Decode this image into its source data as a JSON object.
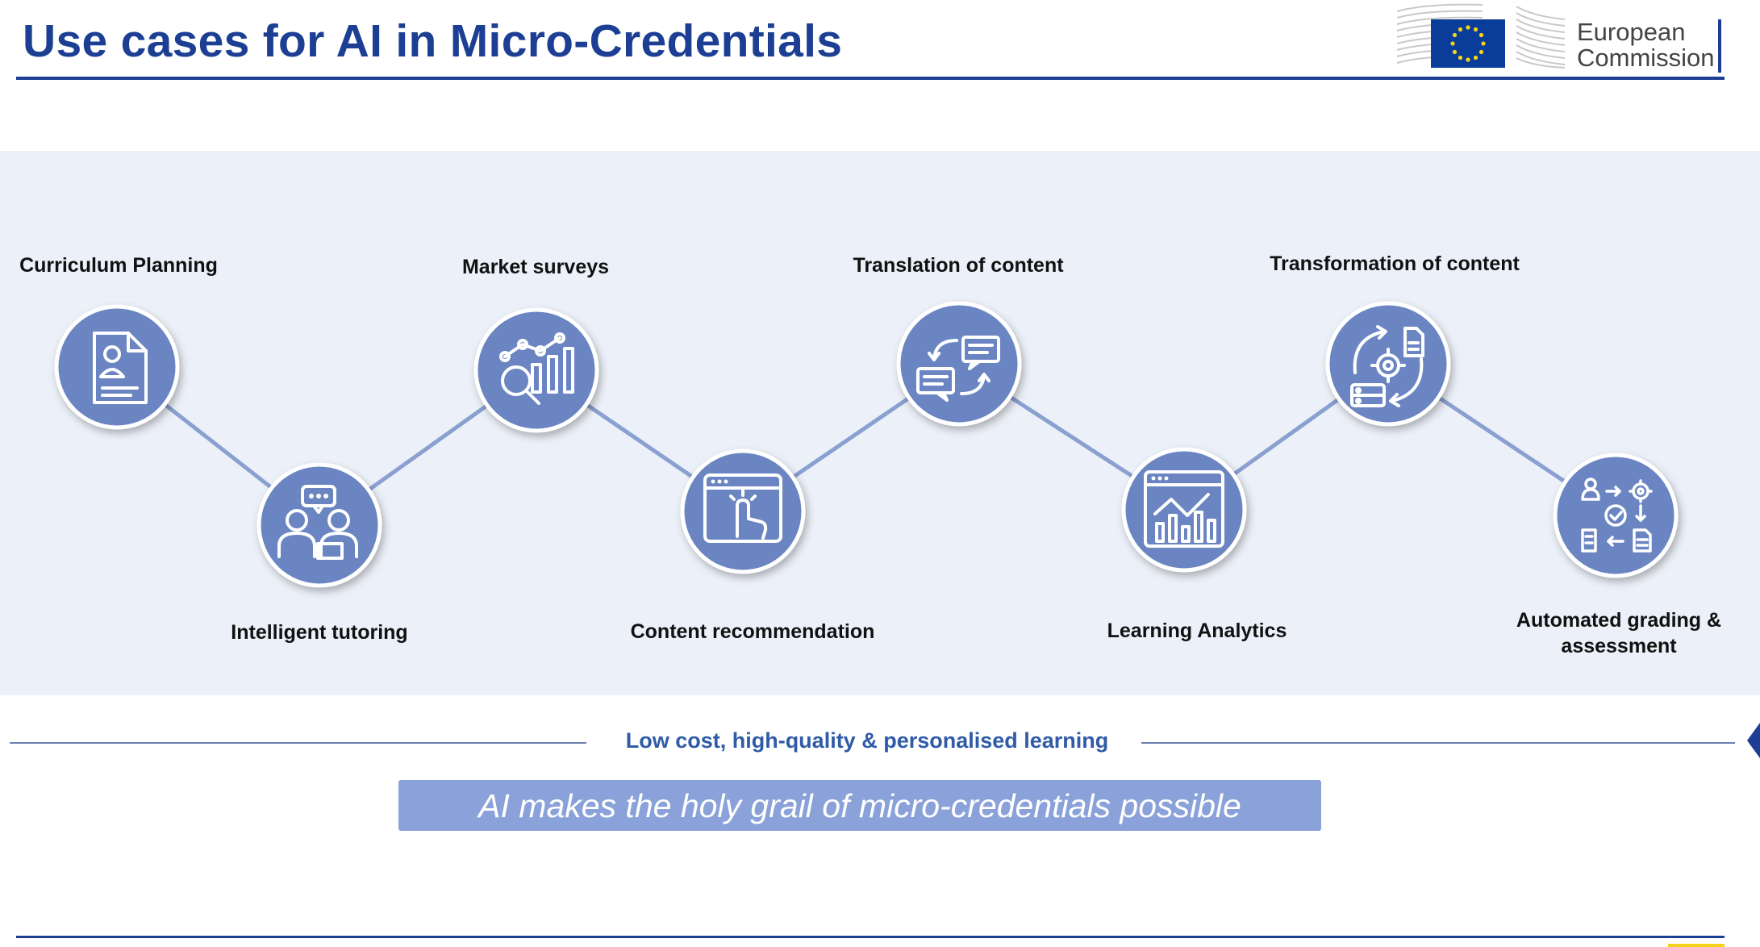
{
  "page": {
    "title": "Use cases for AI in Micro-Credentials"
  },
  "logo": {
    "line1": "European",
    "line2": "Commission"
  },
  "diagram": {
    "nodes": [
      {
        "label": "Curriculum Planning",
        "icon": "document-person-icon"
      },
      {
        "label": "Intelligent tutoring",
        "icon": "tutoring-people-icon"
      },
      {
        "label": "Market surveys",
        "icon": "chart-magnifier-icon"
      },
      {
        "label": "Content recommendation",
        "icon": "browser-click-icon"
      },
      {
        "label": "Translation of content",
        "icon": "speech-swap-icon"
      },
      {
        "label": "Learning Analytics",
        "icon": "analytics-dashboard-icon"
      },
      {
        "label": "Transformation of content",
        "icon": "gear-cycle-icon"
      },
      {
        "label": "Automated grading &",
        "label2": "assessment",
        "icon": "grading-flow-icon"
      }
    ]
  },
  "footer": {
    "tagline": "Low cost, high-quality & personalised learning",
    "banner": "AI makes the holy grail of micro-credentials possible"
  },
  "colors": {
    "title": "#1c3f94",
    "node_fill": "#6a85c2",
    "connector": "#8aa0d0",
    "band": "#ecf0f8",
    "banner": "#8aa2d9",
    "tagline": "#2f5ba8"
  }
}
